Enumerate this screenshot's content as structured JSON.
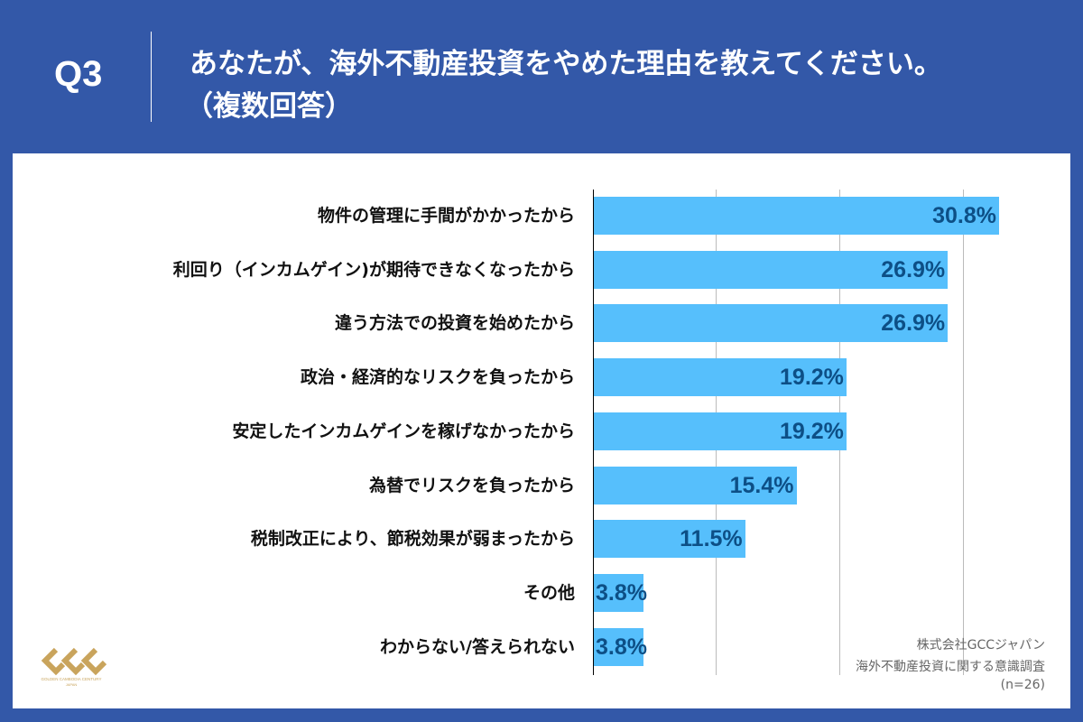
{
  "header": {
    "question_number": "Q3",
    "title_line1": "あなたが、海外不動産投資をやめた理由を教えてください。",
    "title_line2": "（複数回答）"
  },
  "chart_data": {
    "type": "bar",
    "orientation": "horizontal",
    "xlim": [
      0,
      35
    ],
    "grid": true,
    "categories": [
      "物件の管理に手間がかかったから",
      "利回り（インカムゲイン)が期待できなくなったから",
      "違う方法での投資を始めたから",
      "政治・経済的なリスクを負ったから",
      "安定したインカムゲインを稼げなかったから",
      "為替でリスクを負ったから",
      "税制改正により、節税効果が弱まったから",
      "その他",
      "わからない/答えられない"
    ],
    "values": [
      30.8,
      26.9,
      26.9,
      19.2,
      19.2,
      15.4,
      11.5,
      3.8,
      3.8
    ],
    "labels": [
      "30.8%",
      "26.9%",
      "26.9%",
      "19.2%",
      "19.2%",
      "15.4%",
      "11.5%",
      "3.8%",
      "3.8%"
    ],
    "bar_color": "#56bffc",
    "label_color": "#0d4f86"
  },
  "source": {
    "company": "株式会社GCCジャパン",
    "survey": "海外不動産投資に関する意識調査",
    "n": "(n=26)"
  },
  "logo": {
    "text": "GCC",
    "subtext": "GOLDEN CAMBODIA CENTURY JAPAN",
    "color": "#c9a45c"
  },
  "colors": {
    "background": "#3358a8"
  }
}
